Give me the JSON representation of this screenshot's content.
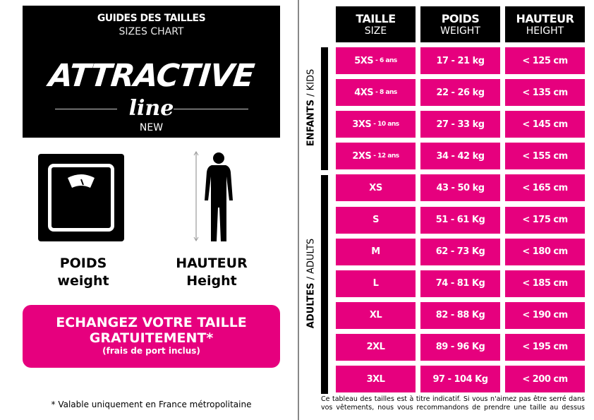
{
  "brand": {
    "title": "GUIDES DES TAILLES",
    "subtitle": "SIZES CHART",
    "logo_main": "ATTRACTIVE",
    "logo_sub": "line",
    "tag": "NEW"
  },
  "icons": [
    {
      "icon": "scale-icon",
      "label": "POIDS",
      "sublabel": "weight"
    },
    {
      "icon": "human-height-icon",
      "label": "HAUTEUR",
      "sublabel": "Height"
    }
  ],
  "promo": {
    "line1": "ECHANGEZ VOTRE TAILLE",
    "line2": "GRATUITEMENT*",
    "line3": "(frais de port inclus)"
  },
  "footnote": "* Valable uniquement en France métropolitaine",
  "table": {
    "headers": [
      {
        "fr": "TAILLE",
        "en": "SIZE"
      },
      {
        "fr": "POIDS",
        "en": "WEIGHT"
      },
      {
        "fr": "HAUTEUR",
        "en": "HEIGHT"
      }
    ],
    "groups": [
      {
        "bold": "ENFANTS",
        "rest": " / KIDS"
      },
      {
        "bold": "ADULTES",
        "rest": " / ADULTS"
      }
    ],
    "rows": [
      {
        "size": "5XS",
        "age": "- 6 ans",
        "weight": "17 - 21 kg",
        "height": "< 125 cm",
        "group": 0
      },
      {
        "size": "4XS",
        "age": "- 8 ans",
        "weight": "22 - 26 kg",
        "height": "< 135 cm",
        "group": 0
      },
      {
        "size": "3XS",
        "age": "- 10 ans",
        "weight": "27 - 33 kg",
        "height": "< 145 cm",
        "group": 0
      },
      {
        "size": "2XS",
        "age": "- 12 ans",
        "weight": "34 - 42 kg",
        "height": "< 155 cm",
        "group": 0
      },
      {
        "size": "XS",
        "weight": "43 - 50 kg",
        "height": "< 165 cm",
        "group": 1
      },
      {
        "size": "S",
        "weight": "51 - 61 Kg",
        "height": "< 175 cm",
        "group": 1
      },
      {
        "size": "M",
        "weight": "62 - 73 Kg",
        "height": "< 180 cm",
        "group": 1
      },
      {
        "size": "L",
        "weight": "74 - 81 Kg",
        "height": "< 185 cm",
        "group": 1
      },
      {
        "size": "XL",
        "weight": "82 - 88 Kg",
        "height": "< 190 cm",
        "group": 1
      },
      {
        "size": "2XL",
        "weight": "89 - 96 Kg",
        "height": "< 195 cm",
        "group": 1
      },
      {
        "size": "3XL",
        "weight": "97 - 104 Kg",
        "height": "< 200 cm",
        "group": 1
      }
    ],
    "note": "Ce tableau des tailles est à titre indicatif. Si vous n'aimez pas être serré dans vos vêtements, nous vous recommandons de prendre une taille au dessus"
  },
  "colors": {
    "accent": "#e6007e",
    "dark": "#000000"
  }
}
